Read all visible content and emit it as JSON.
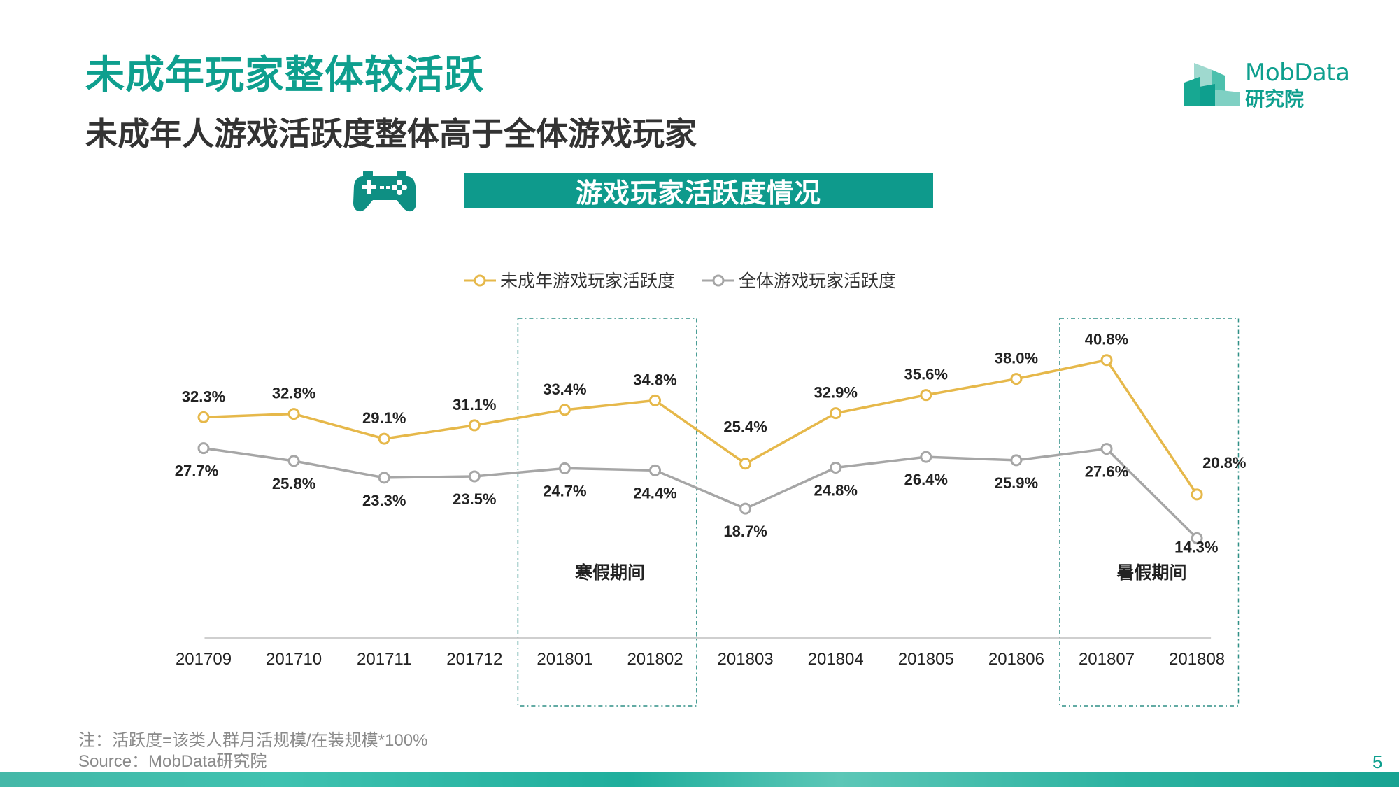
{
  "title": "未成年玩家整体较活跃",
  "subtitle": "未成年人游戏活跃度整体高于全体游戏玩家",
  "banner": "游戏玩家活跃度情况",
  "logo": {
    "name": "MobData",
    "sub": "研究院",
    "color": "#0e9f8e"
  },
  "icons": {
    "gamepad": "gamepad-icon"
  },
  "colors": {
    "accent": "#0e9f8e",
    "minor": "#e6b84a",
    "all": "#a6a6a6",
    "period": "#2f8f86"
  },
  "chart_data": {
    "type": "line",
    "categories": [
      "201709",
      "201710",
      "201711",
      "201712",
      "201801",
      "201802",
      "201803",
      "201804",
      "201805",
      "201806",
      "201807",
      "201808"
    ],
    "series": [
      {
        "name": "未成年游戏玩家活跃度",
        "color": "#e6b84a",
        "values": [
          32.3,
          32.8,
          29.1,
          31.1,
          33.4,
          34.8,
          25.4,
          32.9,
          35.6,
          38.0,
          40.8,
          20.8
        ]
      },
      {
        "name": "全体游戏玩家活跃度",
        "color": "#a6a6a6",
        "values": [
          27.7,
          25.8,
          23.3,
          23.5,
          24.7,
          24.4,
          18.7,
          24.8,
          26.4,
          25.9,
          27.6,
          14.3
        ]
      }
    ],
    "labels": [
      [
        "32.3%",
        "32.8%",
        "29.1%",
        "31.1%",
        "33.4%",
        "34.8%",
        "25.4%",
        "32.9%",
        "35.6%",
        "38.0%",
        "40.8%",
        "20.8%"
      ],
      [
        "27.7%",
        "25.8%",
        "23.3%",
        "23.5%",
        "24.7%",
        "24.4%",
        "18.7%",
        "24.8%",
        "26.4%",
        "25.9%",
        "27.6%",
        "14.3%"
      ]
    ],
    "highlights": [
      {
        "label": "寒假期间",
        "from": "201801",
        "to": "201802"
      },
      {
        "label": "暑假期间",
        "from": "201807",
        "to": "201808"
      }
    ],
    "legend_position": "top-center",
    "grid": false
  },
  "footnote": {
    "note": "注：活跃度=该类人群月活规模/在装规模*100%",
    "source": "Source：MobData研究院"
  },
  "page_number": "5"
}
